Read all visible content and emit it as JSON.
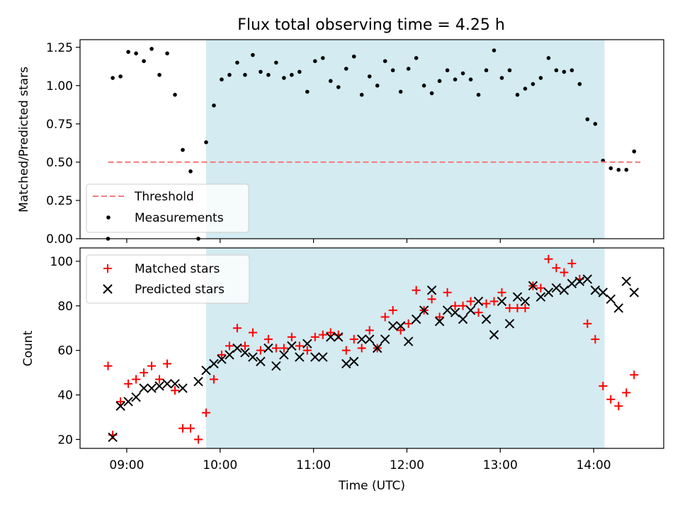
{
  "title": "Flux total observing time = 4.25 h",
  "chart_data": [
    {
      "type": "scatter",
      "ylabel": "Matched/Predicted stars",
      "xlim": [
        "08:30",
        "14:45"
      ],
      "ylim": [
        0,
        1.3
      ],
      "yticks": [
        0.0,
        0.25,
        0.5,
        0.75,
        1.0,
        1.25
      ],
      "ytick_labels": [
        "0.00",
        "0.25",
        "0.50",
        "0.75",
        "1.00",
        "1.25"
      ],
      "shaded_span": {
        "start": "09:51",
        "end": "14:07",
        "color": "#d3ebf1"
      },
      "threshold": {
        "name": "Threshold",
        "value": 0.5,
        "start": "08:48",
        "end": "14:30",
        "color": "#f47b7b",
        "style": "dashed"
      },
      "legend": {
        "placement": "lower-left",
        "entries": [
          "Threshold",
          "Measurements"
        ]
      },
      "series": [
        {
          "name": "Measurements",
          "color": "#000000",
          "marker": "dot",
          "x": [
            "08:48",
            "08:51",
            "08:56",
            "09:01",
            "09:06",
            "09:11",
            "09:16",
            "09:21",
            "09:26",
            "09:31",
            "09:36",
            "09:41",
            "09:46",
            "09:51",
            "09:56",
            "10:01",
            "10:06",
            "10:11",
            "10:16",
            "10:21",
            "10:26",
            "10:31",
            "10:36",
            "10:41",
            "10:46",
            "10:51",
            "10:56",
            "11:01",
            "11:06",
            "11:11",
            "11:16",
            "11:21",
            "11:26",
            "11:31",
            "11:36",
            "11:41",
            "11:46",
            "11:51",
            "11:56",
            "12:01",
            "12:06",
            "12:11",
            "12:16",
            "12:21",
            "12:26",
            "12:31",
            "12:36",
            "12:41",
            "12:46",
            "12:51",
            "12:56",
            "13:01",
            "13:06",
            "13:11",
            "13:16",
            "13:21",
            "13:26",
            "13:31",
            "13:36",
            "13:41",
            "13:46",
            "13:51",
            "13:56",
            "14:01",
            "14:06",
            "14:11",
            "14:16",
            "14:21",
            "14:26"
          ],
          "y": [
            0.0,
            1.05,
            1.06,
            1.22,
            1.21,
            1.16,
            1.24,
            1.07,
            1.21,
            0.94,
            0.58,
            0.44,
            0.0,
            0.63,
            0.87,
            1.04,
            1.07,
            1.15,
            1.07,
            1.2,
            1.09,
            1.07,
            1.15,
            1.05,
            1.07,
            1.09,
            0.96,
            1.16,
            1.18,
            1.03,
            0.99,
            1.11,
            1.19,
            0.94,
            1.06,
            1.0,
            1.16,
            1.1,
            0.96,
            1.11,
            1.18,
            1.0,
            0.95,
            1.03,
            1.1,
            1.04,
            1.08,
            1.04,
            0.94,
            1.1,
            1.23,
            1.05,
            1.1,
            0.94,
            0.98,
            1.01,
            1.05,
            1.18,
            1.1,
            1.09,
            1.1,
            1.01,
            0.78,
            0.75,
            0.51,
            0.46,
            0.45,
            0.45,
            0.57
          ]
        }
      ]
    },
    {
      "type": "scatter",
      "xlabel": "Time (UTC)",
      "ylabel": "Count",
      "xlim": [
        "08:30",
        "14:45"
      ],
      "ylim": [
        16,
        106
      ],
      "xticks": [
        "09:00",
        "10:00",
        "11:00",
        "12:00",
        "13:00",
        "14:00"
      ],
      "yticks": [
        20,
        40,
        60,
        80,
        100
      ],
      "ytick_labels": [
        "20",
        "40",
        "60",
        "80",
        "100"
      ],
      "shaded_span": {
        "start": "09:51",
        "end": "14:07",
        "color": "#d3ebf1"
      },
      "legend": {
        "placement": "top-left",
        "entries": [
          "Matched stars",
          "Predicted stars"
        ]
      },
      "series": [
        {
          "name": "Matched stars",
          "color": "#ff0000",
          "marker": "plus",
          "x": [
            "08:48",
            "08:51",
            "08:56",
            "09:01",
            "09:06",
            "09:11",
            "09:16",
            "09:21",
            "09:26",
            "09:31",
            "09:36",
            "09:41",
            "09:46",
            "09:51",
            "09:56",
            "10:01",
            "10:06",
            "10:11",
            "10:16",
            "10:21",
            "10:26",
            "10:31",
            "10:36",
            "10:41",
            "10:46",
            "10:51",
            "10:56",
            "11:01",
            "11:06",
            "11:11",
            "11:16",
            "11:21",
            "11:26",
            "11:31",
            "11:36",
            "11:41",
            "11:46",
            "11:51",
            "11:56",
            "12:01",
            "12:06",
            "12:11",
            "12:16",
            "12:21",
            "12:26",
            "12:31",
            "12:36",
            "12:41",
            "12:46",
            "12:51",
            "12:56",
            "13:01",
            "13:06",
            "13:11",
            "13:16",
            "13:21",
            "13:26",
            "13:31",
            "13:36",
            "13:41",
            "13:46",
            "13:51",
            "13:56",
            "14:01",
            "14:06",
            "14:11",
            "14:16",
            "14:21",
            "14:26"
          ],
          "y": [
            53,
            22,
            37,
            45,
            47,
            50,
            53,
            47,
            54,
            42,
            25,
            25,
            20,
            32,
            47,
            58,
            62,
            70,
            62,
            68,
            60,
            65,
            61,
            61,
            66,
            62,
            60,
            66,
            67,
            68,
            67,
            60,
            65,
            61,
            69,
            61,
            75,
            78,
            69,
            72,
            87,
            78,
            83,
            75,
            86,
            80,
            80,
            82,
            77,
            81,
            82,
            86,
            79,
            79,
            79,
            89,
            88,
            101,
            97,
            95,
            99,
            92,
            72,
            65,
            44,
            38,
            35,
            41,
            49
          ]
        },
        {
          "name": "Predicted stars",
          "color": "#000000",
          "marker": "x",
          "x": [
            "08:51",
            "08:56",
            "09:01",
            "09:06",
            "09:11",
            "09:16",
            "09:21",
            "09:26",
            "09:31",
            "09:36",
            "09:46",
            "09:51",
            "09:56",
            "10:01",
            "10:06",
            "10:11",
            "10:16",
            "10:21",
            "10:26",
            "10:31",
            "10:36",
            "10:41",
            "10:46",
            "10:51",
            "10:56",
            "11:01",
            "11:06",
            "11:11",
            "11:16",
            "11:21",
            "11:26",
            "11:31",
            "11:36",
            "11:41",
            "11:46",
            "11:51",
            "11:56",
            "12:01",
            "12:06",
            "12:11",
            "12:16",
            "12:21",
            "12:26",
            "12:31",
            "12:36",
            "12:41",
            "12:46",
            "12:51",
            "12:56",
            "13:01",
            "13:06",
            "13:11",
            "13:16",
            "13:21",
            "13:26",
            "13:31",
            "13:36",
            "13:41",
            "13:46",
            "13:51",
            "13:56",
            "14:01",
            "14:06",
            "14:11",
            "14:16",
            "14:21",
            "14:26"
          ],
          "y": [
            21,
            35,
            37,
            39,
            43,
            43,
            44,
            45,
            45,
            43,
            46,
            51,
            54,
            56,
            58,
            61,
            59,
            57,
            55,
            61,
            53,
            58,
            62,
            57,
            63,
            57,
            57,
            66,
            66,
            54,
            55,
            65,
            65,
            61,
            65,
            71,
            71,
            64,
            74,
            78,
            87,
            73,
            78,
            77,
            74,
            78,
            82,
            74,
            67,
            82,
            72,
            84,
            82,
            89,
            84,
            86,
            88,
            87,
            90,
            91,
            92,
            87,
            86,
            83,
            79,
            91,
            86
          ]
        }
      ]
    }
  ]
}
